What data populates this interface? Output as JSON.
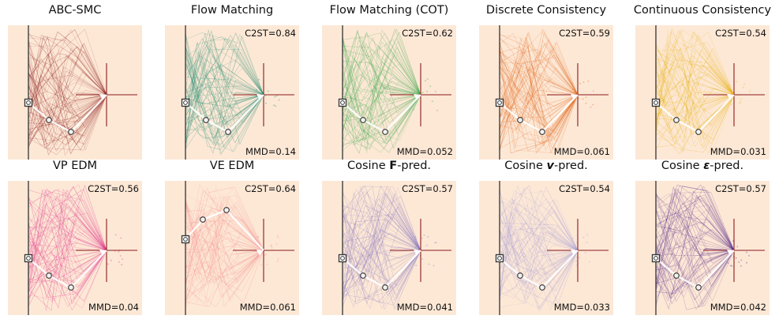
{
  "chart_data": [
    {
      "type": "scatter",
      "title": "ABC-SMC",
      "color": "#8b1a1a",
      "c2st": "",
      "mmd": "",
      "path_shape": "down"
    },
    {
      "type": "scatter",
      "title": "Flow Matching",
      "color": "#1a8a6e",
      "c2st": "C2ST=0.84",
      "mmd": "MMD=0.14",
      "path_shape": "down"
    },
    {
      "type": "scatter",
      "title": "Flow Matching (COT)",
      "color": "#3aa84a",
      "c2st": "C2ST=0.62",
      "mmd": "MMD=0.052",
      "path_shape": "down"
    },
    {
      "type": "scatter",
      "title": "Discrete Consistency",
      "color": "#e0661a",
      "c2st": "C2ST=0.59",
      "mmd": "MMD=0.061",
      "path_shape": "down"
    },
    {
      "type": "scatter",
      "title": "Continuous Consistency",
      "color": "#e8b418",
      "c2st": "C2ST=0.54",
      "mmd": "MMD=0.031",
      "path_shape": "down"
    },
    {
      "type": "scatter",
      "title": "VP EDM",
      "color": "#e0338a",
      "c2st": "C2ST=0.56",
      "mmd": "MMD=0.04",
      "path_shape": "down"
    },
    {
      "type": "scatter",
      "title": "VE EDM",
      "color": "#f58f8f",
      "c2st": "C2ST=0.64",
      "mmd": "MMD=0.061",
      "path_shape": "up"
    },
    {
      "type": "scatter",
      "title_parts": [
        "Cosine ",
        "F",
        "-pred."
      ],
      "title_style": "bold",
      "color": "#8878c0",
      "c2st": "C2ST=0.57",
      "mmd": "MMD=0.041",
      "path_shape": "down"
    },
    {
      "type": "scatter",
      "title_parts": [
        "Cosine ",
        "v",
        "-pred."
      ],
      "title_style": "bolditalic",
      "color": "#a8a0d8",
      "c2st": "C2ST=0.54",
      "mmd": "MMD=0.033",
      "path_shape": "down"
    },
    {
      "type": "scatter",
      "title_parts": [
        "Cosine ",
        "ε",
        "-pred."
      ],
      "title_style": "bolditalic",
      "color": "#5a2e8a",
      "c2st": "C2ST=0.57",
      "mmd": "MMD=0.042",
      "path_shape": "down"
    }
  ]
}
